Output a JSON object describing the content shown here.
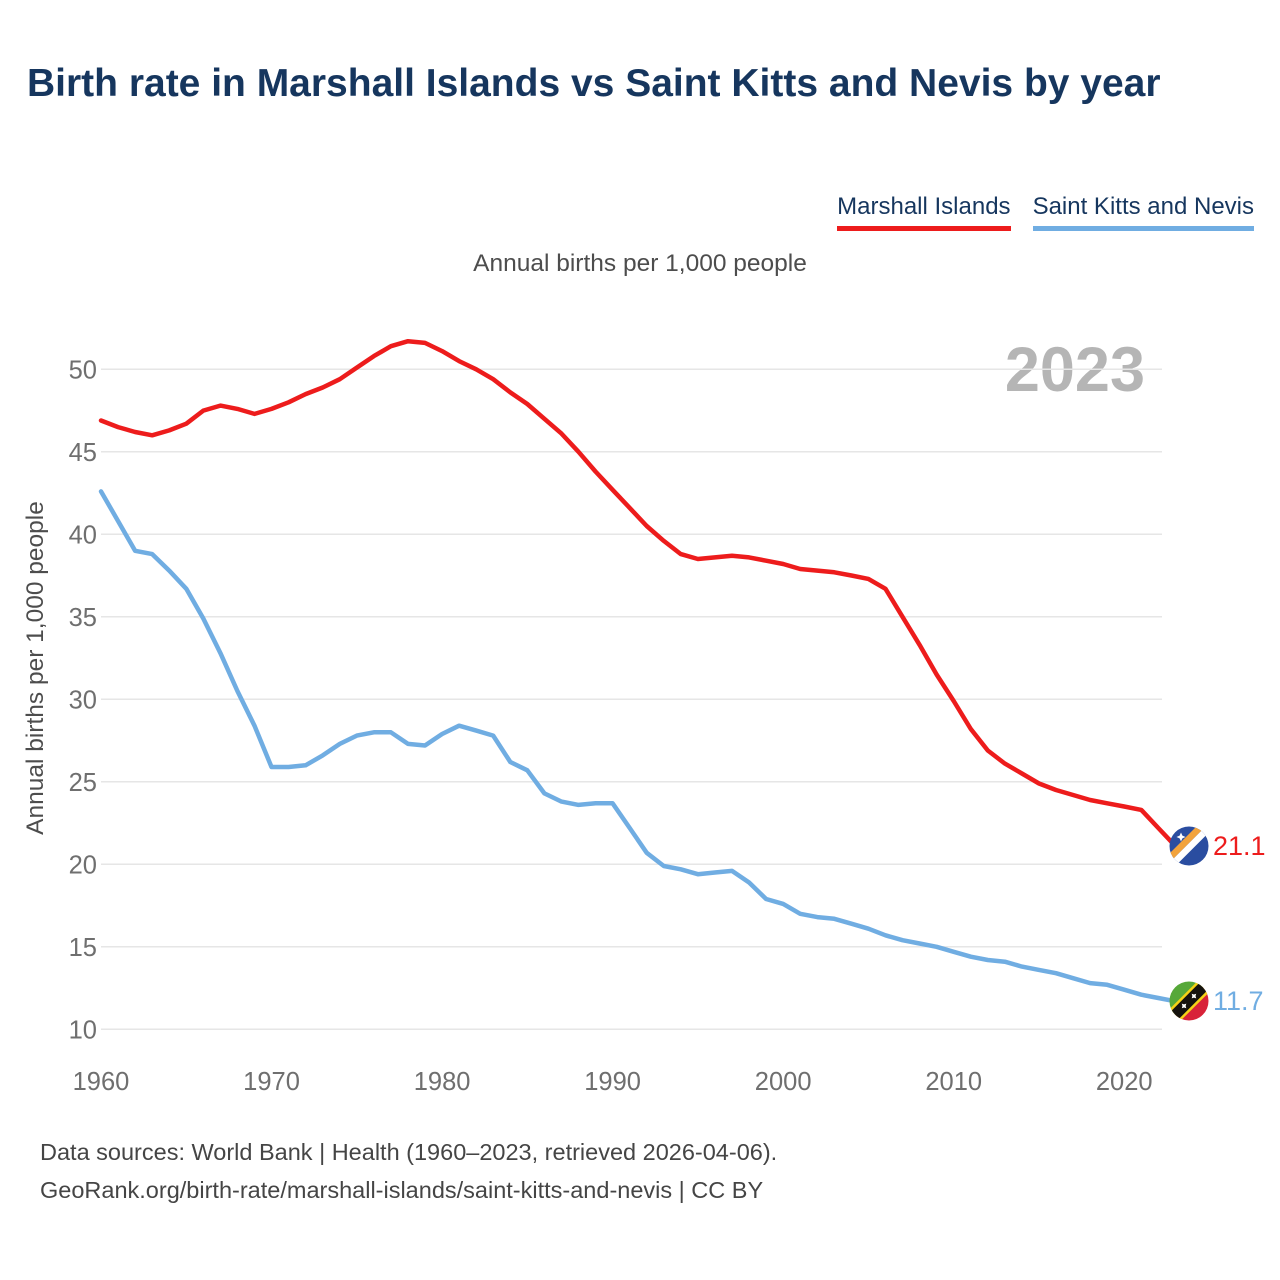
{
  "title": "Birth rate in Marshall Islands vs Saint Kitts and Nevis by year",
  "subtitle": "Annual births per 1,000 people",
  "watermark": "2023",
  "legend": [
    {
      "label": "Marshall Islands",
      "color": "#ed1c1c"
    },
    {
      "label": "Saint Kitts and Nevis",
      "color": "#70ade2"
    }
  ],
  "footer": {
    "line1": "Data sources: World Bank | Health (1960–2023, retrieved 2026-04-06).",
    "line2": "GeoRank.org/birth-rate/marshall-islands/saint-kitts-and-nevis | CC BY"
  },
  "chart_data": {
    "type": "line",
    "title": "Birth rate in Marshall Islands vs Saint Kitts and Nevis by year",
    "subtitle": "Annual births per 1,000 people",
    "xlabel": "",
    "ylabel": "Annual births per 1,000 people",
    "grid": "horizontal",
    "legend_position": "top-right",
    "x_range": [
      1960,
      2023
    ],
    "ylim": [
      8.5,
      53
    ],
    "xticks": [
      1960,
      1970,
      1980,
      1990,
      2000,
      2010,
      2020
    ],
    "yticks": [
      10,
      15,
      20,
      25,
      30,
      35,
      40,
      45,
      50
    ],
    "x": [
      1960,
      1961,
      1962,
      1963,
      1964,
      1965,
      1966,
      1967,
      1968,
      1969,
      1970,
      1971,
      1972,
      1973,
      1974,
      1975,
      1976,
      1977,
      1978,
      1979,
      1980,
      1981,
      1982,
      1983,
      1984,
      1985,
      1986,
      1987,
      1988,
      1989,
      1990,
      1991,
      1992,
      1993,
      1994,
      1995,
      1996,
      1997,
      1998,
      1999,
      2000,
      2001,
      2002,
      2003,
      2004,
      2005,
      2006,
      2007,
      2008,
      2009,
      2010,
      2011,
      2012,
      2013,
      2014,
      2015,
      2016,
      2017,
      2018,
      2019,
      2020,
      2021,
      2022,
      2023
    ],
    "series": [
      {
        "name": "Marshall Islands",
        "color": "#ed1c1c",
        "end_label": "21.1",
        "flag": "marshall-islands",
        "values": [
          46.9,
          46.5,
          46.2,
          46.0,
          46.3,
          46.7,
          47.5,
          47.8,
          47.6,
          47.3,
          47.6,
          48.0,
          48.5,
          48.9,
          49.4,
          50.1,
          50.8,
          51.4,
          51.7,
          51.6,
          51.1,
          50.5,
          50.0,
          49.4,
          48.6,
          47.9,
          47.0,
          46.1,
          45.0,
          43.8,
          42.7,
          41.6,
          40.5,
          39.6,
          38.8,
          38.5,
          38.6,
          38.7,
          38.6,
          38.4,
          38.2,
          37.9,
          37.8,
          37.7,
          37.5,
          37.3,
          36.7,
          35.0,
          33.3,
          31.5,
          29.9,
          28.2,
          26.9,
          26.1,
          25.5,
          24.9,
          24.5,
          24.2,
          23.9,
          23.7,
          23.5,
          23.3,
          22.2,
          21.1
        ]
      },
      {
        "name": "Saint Kitts and Nevis",
        "color": "#70ade2",
        "end_label": "11.7",
        "flag": "saint-kitts-and-nevis",
        "values": [
          42.6,
          40.8,
          39.0,
          38.8,
          37.8,
          36.7,
          34.9,
          32.8,
          30.5,
          28.4,
          25.9,
          25.9,
          26.0,
          26.6,
          27.3,
          27.8,
          28.0,
          28.0,
          27.3,
          27.2,
          27.9,
          28.4,
          28.1,
          27.8,
          26.2,
          25.7,
          24.3,
          23.8,
          23.6,
          23.7,
          23.7,
          22.2,
          20.7,
          19.9,
          19.7,
          19.4,
          19.5,
          19.6,
          18.9,
          17.9,
          17.6,
          17.0,
          16.8,
          16.7,
          16.4,
          16.1,
          15.7,
          15.4,
          15.2,
          15.0,
          14.7,
          14.4,
          14.2,
          14.1,
          13.8,
          13.6,
          13.4,
          13.1,
          12.8,
          12.7,
          12.4,
          12.1,
          11.9,
          11.7
        ]
      }
    ]
  }
}
